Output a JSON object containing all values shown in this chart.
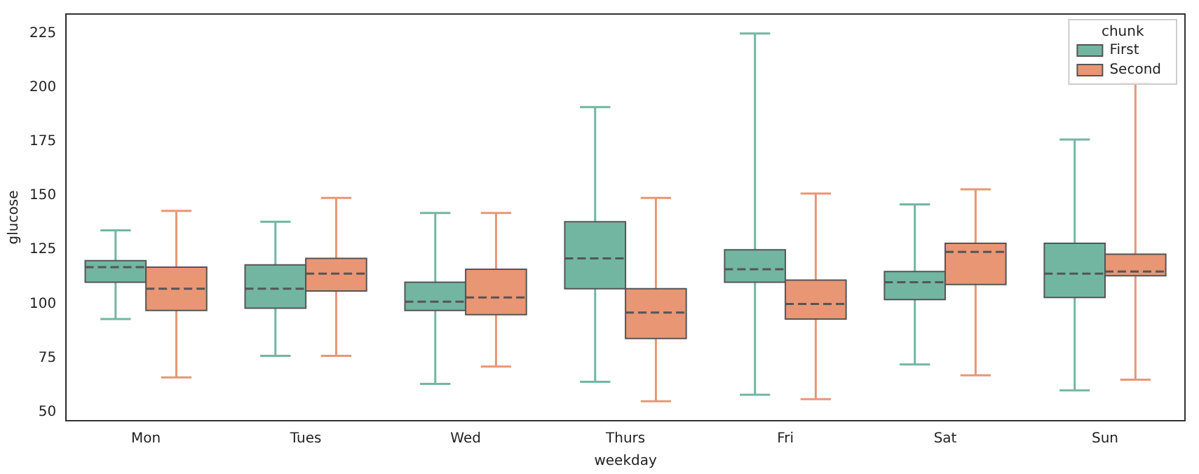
{
  "chart_data": {
    "type": "box",
    "xlabel": "weekday",
    "ylabel": "glucose",
    "legend_title": "chunk",
    "legend": "top right",
    "grid": false,
    "categories": [
      "Mon",
      "Tues",
      "Wed",
      "Thurs",
      "Fri",
      "Sat",
      "Sun"
    ],
    "ylim": [
      46,
      234
    ],
    "yticks": [
      50,
      75,
      100,
      125,
      150,
      175,
      200,
      225
    ],
    "series": [
      {
        "name": "First",
        "color": "#72b6a1",
        "boxes": [
          {
            "low": 93,
            "q1": 110,
            "median": 117,
            "q3": 120,
            "high": 134
          },
          {
            "low": 76,
            "q1": 98,
            "median": 107,
            "q3": 118,
            "high": 138
          },
          {
            "low": 63,
            "q1": 97,
            "median": 101,
            "q3": 110,
            "high": 142
          },
          {
            "low": 64,
            "q1": 107,
            "median": 121,
            "q3": 138,
            "high": 191
          },
          {
            "low": 58,
            "q1": 110,
            "median": 116,
            "q3": 125,
            "high": 225
          },
          {
            "low": 72,
            "q1": 102,
            "median": 110,
            "q3": 115,
            "high": 146
          },
          {
            "low": 60,
            "q1": 103,
            "median": 114,
            "q3": 128,
            "high": 176
          }
        ]
      },
      {
        "name": "Second",
        "color": "#e99675",
        "boxes": [
          {
            "low": 66,
            "q1": 97,
            "median": 107,
            "q3": 117,
            "high": 143
          },
          {
            "low": 76,
            "q1": 106,
            "median": 114,
            "q3": 121,
            "high": 149
          },
          {
            "low": 71,
            "q1": 95,
            "median": 103,
            "q3": 116,
            "high": 142
          },
          {
            "low": 55,
            "q1": 84,
            "median": 96,
            "q3": 107,
            "high": 149
          },
          {
            "low": 56,
            "q1": 93,
            "median": 100,
            "q3": 111,
            "high": 151
          },
          {
            "low": 67,
            "q1": 109,
            "median": 124,
            "q3": 128,
            "high": 153
          },
          {
            "low": 65,
            "q1": 113,
            "median": 115,
            "q3": 123,
            "high": 202
          }
        ]
      }
    ]
  }
}
